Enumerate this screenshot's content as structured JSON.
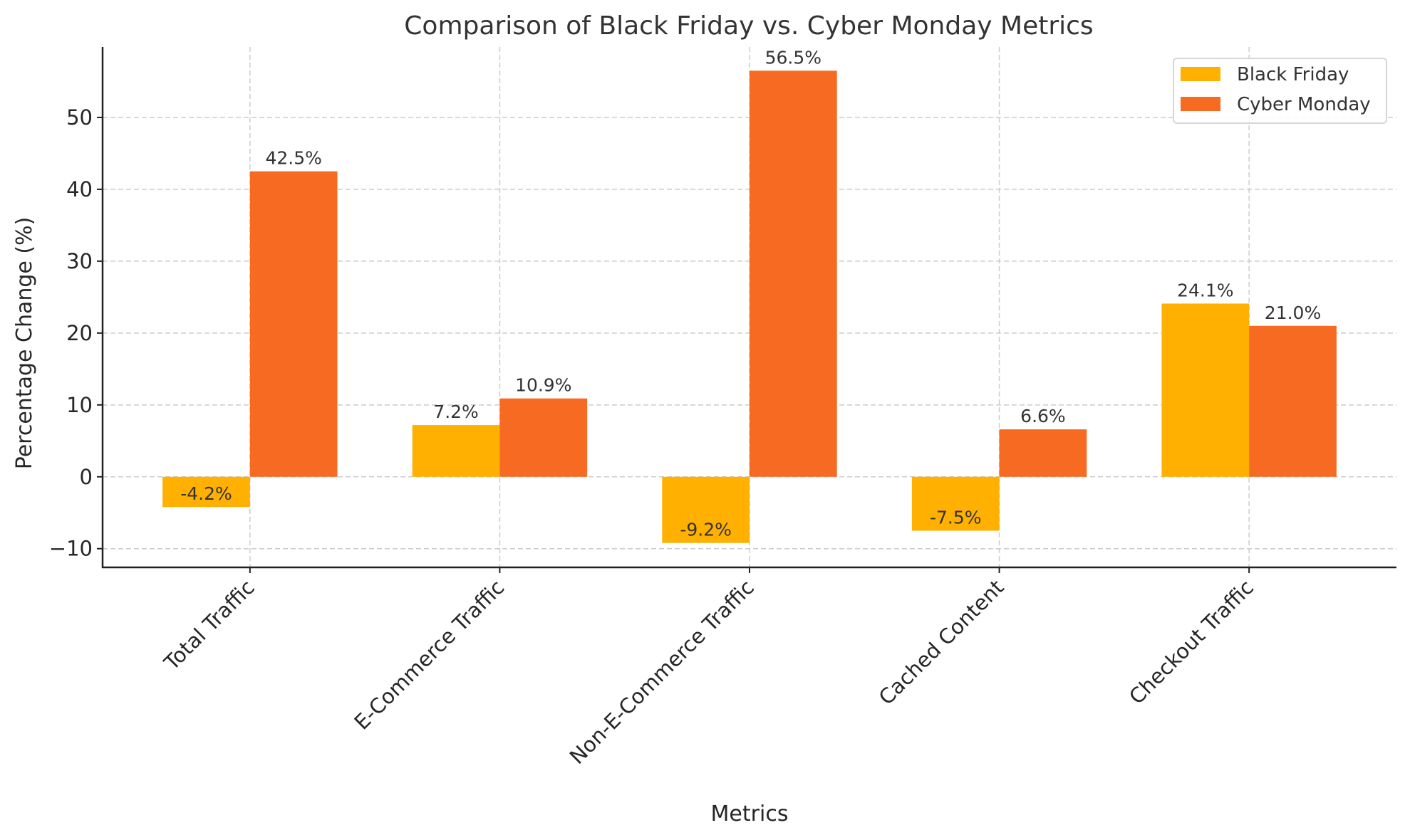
{
  "chart_data": {
    "type": "bar",
    "title": "Comparison of Black Friday vs. Cyber Monday Metrics",
    "xlabel": "Metrics",
    "ylabel": "Percentage Change (%)",
    "categories": [
      "Total Traffic",
      "E-Commerce Traffic",
      "Non-E-Commerce Traffic",
      "Cached Content",
      "Checkout Traffic"
    ],
    "series": [
      {
        "name": "Black Friday",
        "color": "#FFB000",
        "values": [
          -4.2,
          7.2,
          -9.2,
          -7.5,
          24.1
        ],
        "labels": [
          "-4.2%",
          "7.2%",
          "-9.2%",
          "-7.5%",
          "24.1%"
        ]
      },
      {
        "name": "Cyber Monday",
        "color": "#F76A22",
        "values": [
          42.5,
          10.9,
          56.5,
          6.6,
          21.0
        ],
        "labels": [
          "42.5%",
          "10.9%",
          "56.5%",
          "6.6%",
          "21.0%"
        ]
      }
    ],
    "ylim": [
      -12.6,
      59.8
    ],
    "yticks": [
      -10,
      0,
      10,
      20,
      30,
      40,
      50
    ],
    "ytick_labels": [
      "−10",
      "0",
      "10",
      "20",
      "30",
      "40",
      "50"
    ],
    "grid": true,
    "legend": "top-right"
  }
}
